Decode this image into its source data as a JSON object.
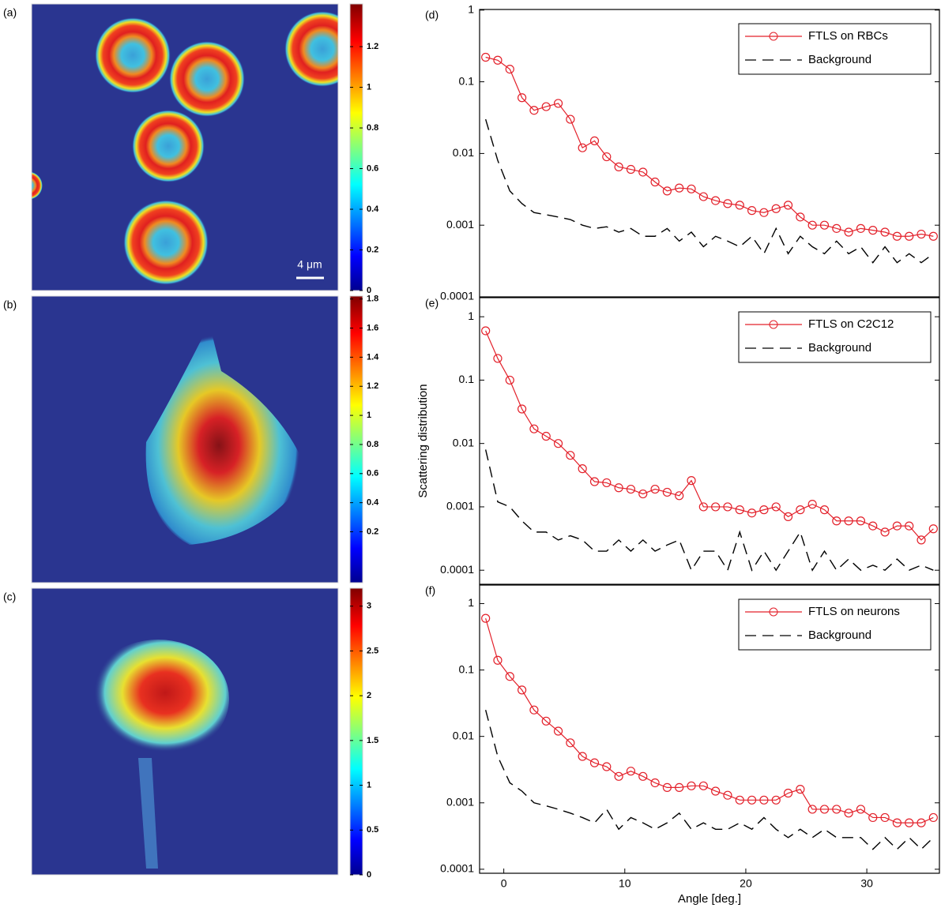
{
  "chart_data": [
    {
      "type": "heatmap",
      "panel_label": "(a)",
      "colormap": "jet",
      "clim": [
        0,
        1.41
      ],
      "cticks": [
        0,
        0.2,
        0.4,
        0.6,
        0.8,
        1,
        1.2
      ],
      "scale_bar": "4 μm"
    },
    {
      "type": "heatmap",
      "panel_label": "(b)",
      "colormap": "jet",
      "clim": [
        -0.15,
        1.82
      ],
      "cticks": [
        0.2,
        0.4,
        0.6,
        0.8,
        1,
        1.2,
        1.4,
        1.6,
        1.8
      ]
    },
    {
      "type": "heatmap",
      "panel_label": "(c)",
      "colormap": "jet",
      "clim": [
        0,
        3.2
      ],
      "cticks": [
        0,
        0.5,
        1,
        1.5,
        2,
        2.5,
        3
      ]
    },
    {
      "type": "line",
      "panel_label": "(d)",
      "log_y": true,
      "legend": "upper right",
      "xlim": [
        -2,
        36
      ],
      "ylim": [
        0.0001,
        1.02
      ],
      "yticks": [
        0.0001,
        0.001,
        0.01,
        0.1,
        1
      ],
      "x": [
        -1.5,
        -0.5,
        0.5,
        1.5,
        2.5,
        3.5,
        4.5,
        5.5,
        6.5,
        7.5,
        8.5,
        9.5,
        10.5,
        11.5,
        12.5,
        13.5,
        14.5,
        15.5,
        16.5,
        17.5,
        18.5,
        19.5,
        20.5,
        21.5,
        22.5,
        23.5,
        24.5,
        25.5,
        26.5,
        27.5,
        28.5,
        29.5,
        30.5,
        31.5,
        32.5,
        33.5,
        34.5,
        35.5
      ],
      "series": [
        {
          "name": "FTLS on RBCs",
          "color": "#e3202a",
          "marker": "circle",
          "dash": "solid",
          "values": [
            0.22,
            0.2,
            0.15,
            0.06,
            0.04,
            0.045,
            0.05,
            0.03,
            0.012,
            0.015,
            0.009,
            0.0065,
            0.006,
            0.0055,
            0.004,
            0.003,
            0.0033,
            0.0032,
            0.0025,
            0.0022,
            0.002,
            0.0019,
            0.0016,
            0.0015,
            0.0017,
            0.0019,
            0.0013,
            0.001,
            0.001,
            0.0009,
            0.0008,
            0.0009,
            0.00085,
            0.0008,
            0.0007,
            0.0007,
            0.00075,
            0.0007
          ]
        },
        {
          "name": "Background",
          "color": "#000000",
          "marker": "none",
          "dash": "dashed",
          "values": [
            0.03,
            0.008,
            0.003,
            0.002,
            0.0015,
            0.0014,
            0.0013,
            0.0012,
            0.001,
            0.0009,
            0.00095,
            0.0008,
            0.0009,
            0.0007,
            0.0007,
            0.0009,
            0.0006,
            0.0008,
            0.0005,
            0.0007,
            0.0006,
            0.0005,
            0.0007,
            0.0004,
            0.0009,
            0.0004,
            0.0007,
            0.0005,
            0.0004,
            0.0006,
            0.0004,
            0.0005,
            0.0003,
            0.0005,
            0.0003,
            0.0004,
            0.0003,
            0.0004
          ]
        }
      ]
    },
    {
      "type": "line",
      "panel_label": "(e)",
      "log_y": true,
      "legend": "upper right",
      "ylabel": "Scattering distribution",
      "xlim": [
        -2,
        36
      ],
      "ylim": [
        6e-05,
        2
      ],
      "yticks": [
        0.0001,
        0.001,
        0.01,
        0.1,
        1
      ],
      "x": [
        -1.5,
        -0.5,
        0.5,
        1.5,
        2.5,
        3.5,
        4.5,
        5.5,
        6.5,
        7.5,
        8.5,
        9.5,
        10.5,
        11.5,
        12.5,
        13.5,
        14.5,
        15.5,
        16.5,
        17.5,
        18.5,
        19.5,
        20.5,
        21.5,
        22.5,
        23.5,
        24.5,
        25.5,
        26.5,
        27.5,
        28.5,
        29.5,
        30.5,
        31.5,
        32.5,
        33.5,
        34.5,
        35.5
      ],
      "series": [
        {
          "name": "FTLS on C2C12",
          "color": "#e3202a",
          "marker": "circle",
          "dash": "solid",
          "values": [
            0.6,
            0.22,
            0.1,
            0.035,
            0.017,
            0.013,
            0.01,
            0.0065,
            0.004,
            0.0025,
            0.0024,
            0.002,
            0.0019,
            0.0016,
            0.0019,
            0.0017,
            0.0015,
            0.0026,
            0.001,
            0.001,
            0.001,
            0.0009,
            0.0008,
            0.0009,
            0.001,
            0.0007,
            0.0009,
            0.0011,
            0.0009,
            0.0006,
            0.0006,
            0.0006,
            0.0005,
            0.0004,
            0.0005,
            0.0005,
            0.0003,
            0.00045
          ]
        },
        {
          "name": "Background",
          "color": "#000000",
          "marker": "none",
          "dash": "dashed",
          "values": [
            0.008,
            0.0012,
            0.001,
            0.0006,
            0.0004,
            0.0004,
            0.0003,
            0.00035,
            0.0003,
            0.0002,
            0.0002,
            0.0003,
            0.0002,
            0.0003,
            0.0002,
            0.00025,
            0.0003,
            0.0001,
            0.0002,
            0.0002,
            0.0001,
            0.0004,
            0.0001,
            0.0002,
            0.0001,
            0.0002,
            0.0004,
            0.0001,
            0.0002,
            0.0001,
            0.00015,
            0.0001,
            0.00012,
            0.0001,
            0.00015,
            0.0001,
            0.00012,
            0.0001
          ]
        }
      ]
    },
    {
      "type": "line",
      "panel_label": "(f)",
      "log_y": true,
      "legend": "upper right",
      "xlabel": "Angle [deg.]",
      "xlim": [
        -2,
        36
      ],
      "ylim": [
        8.7e-05,
        1.9
      ],
      "yticks": [
        0.0001,
        0.001,
        0.01,
        0.1,
        1
      ],
      "xticks": [
        0,
        10,
        20,
        30
      ],
      "x": [
        -1.5,
        -0.5,
        0.5,
        1.5,
        2.5,
        3.5,
        4.5,
        5.5,
        6.5,
        7.5,
        8.5,
        9.5,
        10.5,
        11.5,
        12.5,
        13.5,
        14.5,
        15.5,
        16.5,
        17.5,
        18.5,
        19.5,
        20.5,
        21.5,
        22.5,
        23.5,
        24.5,
        25.5,
        26.5,
        27.5,
        28.5,
        29.5,
        30.5,
        31.5,
        32.5,
        33.5,
        34.5,
        35.5
      ],
      "series": [
        {
          "name": "FTLS on neurons",
          "color": "#e3202a",
          "marker": "circle",
          "dash": "solid",
          "values": [
            0.6,
            0.14,
            0.08,
            0.05,
            0.025,
            0.017,
            0.012,
            0.008,
            0.005,
            0.004,
            0.0035,
            0.0025,
            0.003,
            0.0025,
            0.002,
            0.0017,
            0.0017,
            0.0018,
            0.0018,
            0.0015,
            0.0013,
            0.0011,
            0.0011,
            0.0011,
            0.0011,
            0.0014,
            0.0016,
            0.0008,
            0.0008,
            0.0008,
            0.0007,
            0.0008,
            0.0006,
            0.0006,
            0.0005,
            0.0005,
            0.0005,
            0.0006
          ]
        },
        {
          "name": "Background",
          "color": "#000000",
          "marker": "none",
          "dash": "dashed",
          "values": [
            0.025,
            0.005,
            0.002,
            0.0015,
            0.001,
            0.0009,
            0.0008,
            0.0007,
            0.0006,
            0.0005,
            0.0008,
            0.0004,
            0.0006,
            0.0005,
            0.0004,
            0.0005,
            0.0007,
            0.0004,
            0.0005,
            0.0004,
            0.0004,
            0.0005,
            0.0004,
            0.0006,
            0.0004,
            0.0003,
            0.0004,
            0.0003,
            0.0004,
            0.0003,
            0.0003,
            0.0003,
            0.0002,
            0.0003,
            0.0002,
            0.0003,
            0.0002,
            0.0003
          ]
        }
      ]
    }
  ]
}
